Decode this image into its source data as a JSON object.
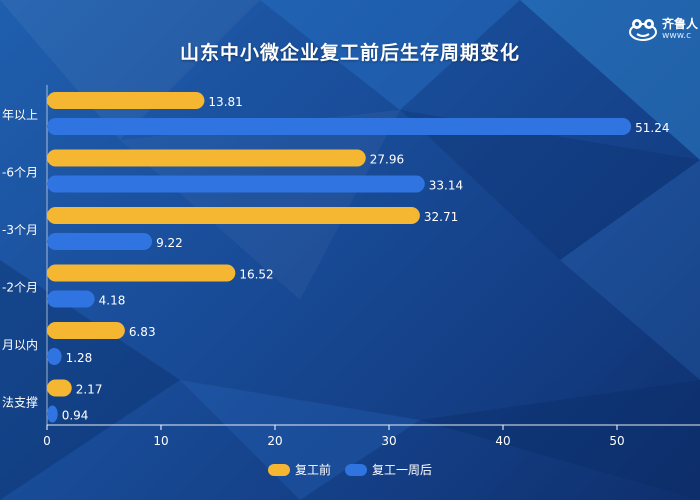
{
  "brand": {
    "name": "齐鲁人",
    "url": "www.c"
  },
  "chart_data": {
    "type": "bar",
    "orientation": "horizontal",
    "title": "山东中小微企业复工前后生存周期变化",
    "categories": [
      "年以上",
      "-6个月",
      "-3个月",
      "-2个月",
      "月以内",
      "法支撑"
    ],
    "series": [
      {
        "name": "复工前",
        "color": "#f5b731",
        "values": [
          13.81,
          27.96,
          32.71,
          16.52,
          6.83,
          2.17
        ]
      },
      {
        "name": "复工一周后",
        "color": "#2f74e0",
        "values": [
          51.24,
          33.14,
          9.22,
          4.18,
          1.28,
          0.94
        ]
      }
    ],
    "x_ticks": [
      0,
      10,
      20,
      30,
      40,
      50
    ],
    "xlim": [
      0,
      57
    ],
    "grid": false,
    "legend": "bottom-center"
  }
}
